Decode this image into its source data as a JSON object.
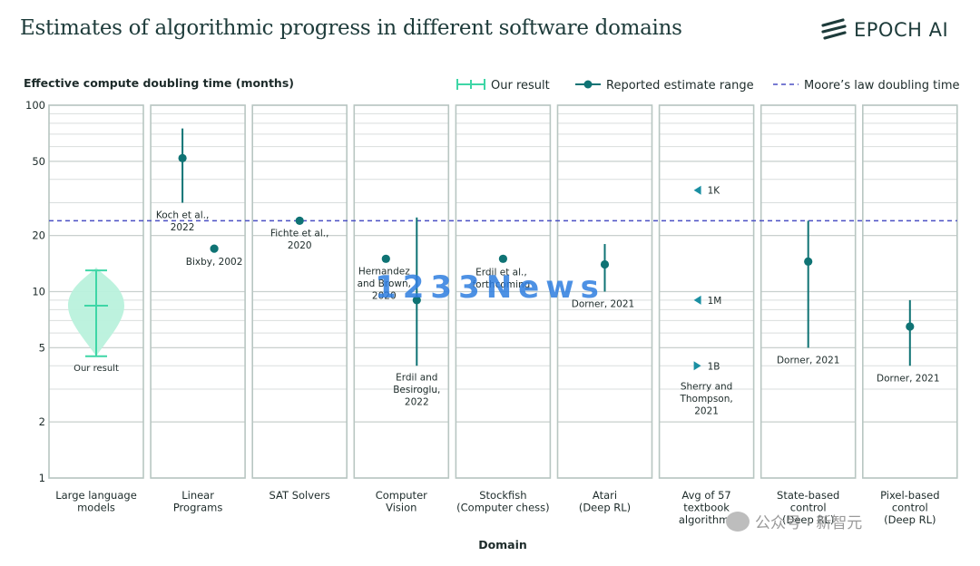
{
  "title": "Estimates of algorithmic progress in different software domains",
  "logo": {
    "text": "EPOCH AI",
    "icon": "epoch-stripes-icon"
  },
  "watermark_center": "1233News",
  "watermark_bottom": "公众号 · 新智元",
  "colors": {
    "teal_dark": "#0f7374",
    "teal_light": "#3ed6a6",
    "teal_fill": "#b9f1dc",
    "moore": "#4a4fc4",
    "grid": "#d9dedd",
    "panel_border": "#b8c6c2",
    "text": "#1d2b2a"
  },
  "chart_data": {
    "type": "scatter",
    "ylabel": "Effective compute doubling time (months)",
    "xlabel": "Domain",
    "yscale": "log",
    "ylim": [
      1,
      100
    ],
    "yticks": [
      "1",
      "2",
      "5",
      "10",
      "20",
      "50",
      "100"
    ],
    "legend": [
      {
        "key": "our-result",
        "label": "Our result"
      },
      {
        "key": "reported",
        "label": "Reported estimate range"
      },
      {
        "key": "moore",
        "label": "Moore’s law doubling time"
      }
    ],
    "moore_law_months": 24,
    "domains": [
      {
        "label": [
          "Large language",
          "models"
        ],
        "our_result": {
          "value": 8.4,
          "low": 4.5,
          "high": 13,
          "violin_low": 4.5,
          "violin_high": 13.5
        },
        "annotations": [
          {
            "lines": [
              "Our result"
            ]
          }
        ]
      },
      {
        "label": [
          "Linear",
          "Programs"
        ],
        "estimates": [
          {
            "value": 52,
            "low": 30,
            "high": 75,
            "lines": [
              "Koch et al.,",
              "2022"
            ]
          },
          {
            "value": 17,
            "lines": [
              "Bixby, 2002"
            ]
          }
        ]
      },
      {
        "label": [
          "SAT Solvers"
        ],
        "estimates": [
          {
            "value": 24,
            "lines": [
              "Fichte et al.,",
              "2020"
            ]
          }
        ]
      },
      {
        "label": [
          "Computer",
          "Vision"
        ],
        "estimates": [
          {
            "value": 15,
            "lines": [
              "Hernandez",
              "and Brown,",
              "2020"
            ]
          },
          {
            "value": 9,
            "low": 4,
            "high": 25,
            "lines": [
              "Erdil and",
              "Besiroglu,",
              "2022"
            ]
          }
        ]
      },
      {
        "label": [
          "Stockfish",
          "(Computer chess)"
        ],
        "estimates": [
          {
            "value": 15,
            "lines": [
              "Erdil et al.,",
              "forthcoming"
            ]
          }
        ]
      },
      {
        "label": [
          "Atari",
          "(Deep RL)"
        ],
        "estimates": [
          {
            "value": 14,
            "low": 10,
            "high": 18,
            "lines": [
              "Dorner, 2021"
            ]
          }
        ]
      },
      {
        "label": [
          "Avg of 57",
          "textbook",
          "algorithms"
        ],
        "estimates": [
          {
            "value": 35,
            "marker": "left-triangle",
            "tag": "1K"
          },
          {
            "value": 9,
            "marker": "left-triangle",
            "tag": "1M"
          },
          {
            "value": 4,
            "marker": "right-triangle",
            "tag": "1B"
          }
        ],
        "annotations": [
          {
            "lines": [
              "Sherry and",
              "Thompson,",
              "2021"
            ]
          }
        ]
      },
      {
        "label": [
          "State-based",
          "control",
          "(Deep RL)"
        ],
        "estimates": [
          {
            "value": 14.5,
            "low": 5,
            "high": 24,
            "lines": [
              "Dorner, 2021"
            ]
          }
        ]
      },
      {
        "label": [
          "Pixel-based",
          "control",
          "(Deep RL)"
        ],
        "estimates": [
          {
            "value": 6.5,
            "low": 4,
            "high": 9,
            "lines": [
              "Dorner, 2021"
            ]
          }
        ]
      }
    ]
  }
}
